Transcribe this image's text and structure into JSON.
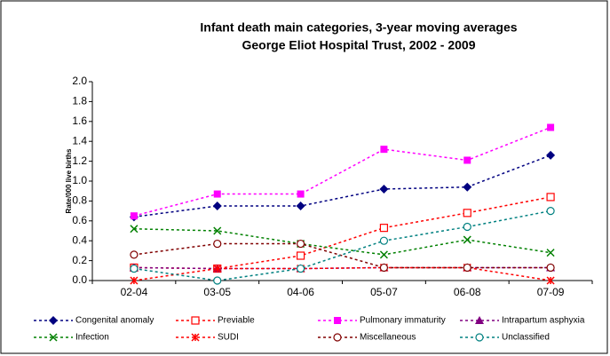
{
  "chart_data": {
    "type": "line",
    "title": "Infant death main categories, 3-year moving averages",
    "subtitle": "George Eliot Hospital Trust, 2002 - 2009",
    "y_label": "Rate/000 live births",
    "categories": [
      "02-04",
      "03-05",
      "04-06",
      "05-07",
      "06-08",
      "07-09"
    ],
    "ylim": [
      0,
      2
    ],
    "yticks": [
      {
        "value": 0,
        "label": "0.0"
      },
      0.2,
      0.4,
      0.6,
      0.8,
      {
        "value": 1,
        "label": "1.0"
      },
      1.2,
      1.4,
      1.6,
      1.8,
      {
        "value": 2,
        "label": "2.0"
      }
    ],
    "grid": false,
    "legend": "bottom",
    "series": [
      {
        "name": "Congenital anomaly",
        "color": "#000080",
        "marker": "diamond",
        "values": [
          0.64,
          0.75,
          0.75,
          0.92,
          0.94,
          1.26
        ]
      },
      {
        "name": "Previable",
        "color": "#ff0000",
        "marker": "open-square",
        "values": [
          0.13,
          0.12,
          0.25,
          0.53,
          0.68,
          0.84
        ]
      },
      {
        "name": "Pulmonary immaturity",
        "color": "#ff00ff",
        "marker": "square",
        "values": [
          0.65,
          0.87,
          0.87,
          1.32,
          1.21,
          1.54
        ]
      },
      {
        "name": "Intrapartum asphyxia",
        "color": "#800080",
        "marker": "triangle",
        "values": [
          0.13,
          0.12,
          0.12,
          0.13,
          0.13,
          0.13
        ]
      },
      {
        "name": "Infection",
        "color": "#008000",
        "marker": "x",
        "values": [
          0.52,
          0.5,
          0.37,
          0.26,
          0.41,
          0.28
        ]
      },
      {
        "name": "SUDI",
        "color": "#ff0000",
        "marker": "star",
        "values": [
          0,
          0.12,
          0.12,
          0.13,
          0.13,
          0
        ]
      },
      {
        "name": "Miscellaneous",
        "color": "#800000",
        "marker": "open-circle",
        "values": [
          0.26,
          0.37,
          0.37,
          0.13,
          0.13,
          0.13
        ]
      },
      {
        "name": "Unclassified",
        "color": "#008080",
        "marker": "open-circle",
        "values": [
          0.12,
          0,
          0.12,
          0.4,
          0.54,
          0.7
        ]
      }
    ]
  }
}
